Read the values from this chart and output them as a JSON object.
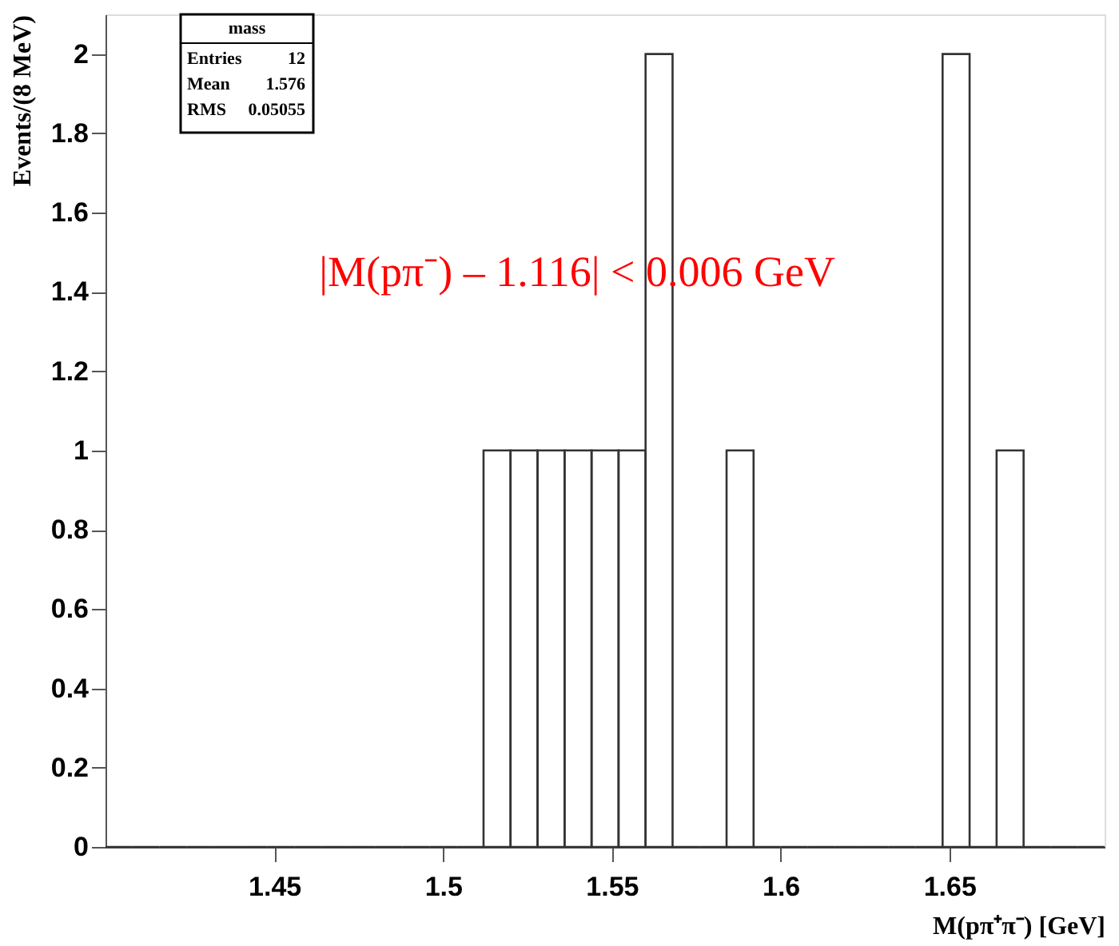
{
  "chart_data": {
    "type": "histogram",
    "xlabel": "M(pπ⁺π⁻) [GeV]",
    "ylabel": "Events/(8 MeV)",
    "bins": [
      1.4,
      1.408,
      1.416,
      1.424,
      1.432,
      1.44,
      1.448,
      1.456,
      1.464,
      1.472,
      1.48,
      1.488,
      1.496,
      1.504,
      1.512,
      1.52,
      1.528,
      1.536,
      1.544,
      1.552,
      1.56,
      1.568,
      1.576,
      1.584,
      1.592,
      1.6,
      1.608,
      1.616,
      1.624,
      1.632,
      1.64,
      1.648,
      1.656,
      1.664,
      1.672,
      1.68,
      1.688,
      1.696
    ],
    "values": [
      0,
      0,
      0,
      0,
      0,
      0,
      0,
      0,
      0,
      0,
      0,
      0,
      0,
      0,
      1,
      1,
      1,
      1,
      1,
      1,
      2,
      0,
      0,
      1,
      0,
      0,
      0,
      0,
      0,
      0,
      0,
      2,
      0,
      1,
      0,
      0,
      0
    ],
    "color": "#333333",
    "xlim": [
      1.4,
      1.696
    ],
    "xticks": [
      1.45,
      1.5,
      1.55,
      1.6,
      1.65
    ],
    "ylim": [
      0,
      2.1
    ],
    "yticks": [
      0,
      0.2,
      0.4,
      0.6,
      0.8,
      1,
      1.2,
      1.4,
      1.6,
      1.8,
      2
    ],
    "grid": false,
    "annotations": [
      "mass",
      "Entries 12",
      "Mean 1.576",
      "RMS 0.05055",
      "|M(pπ⁻) – 1.116| < 0.006 GeV"
    ]
  }
}
